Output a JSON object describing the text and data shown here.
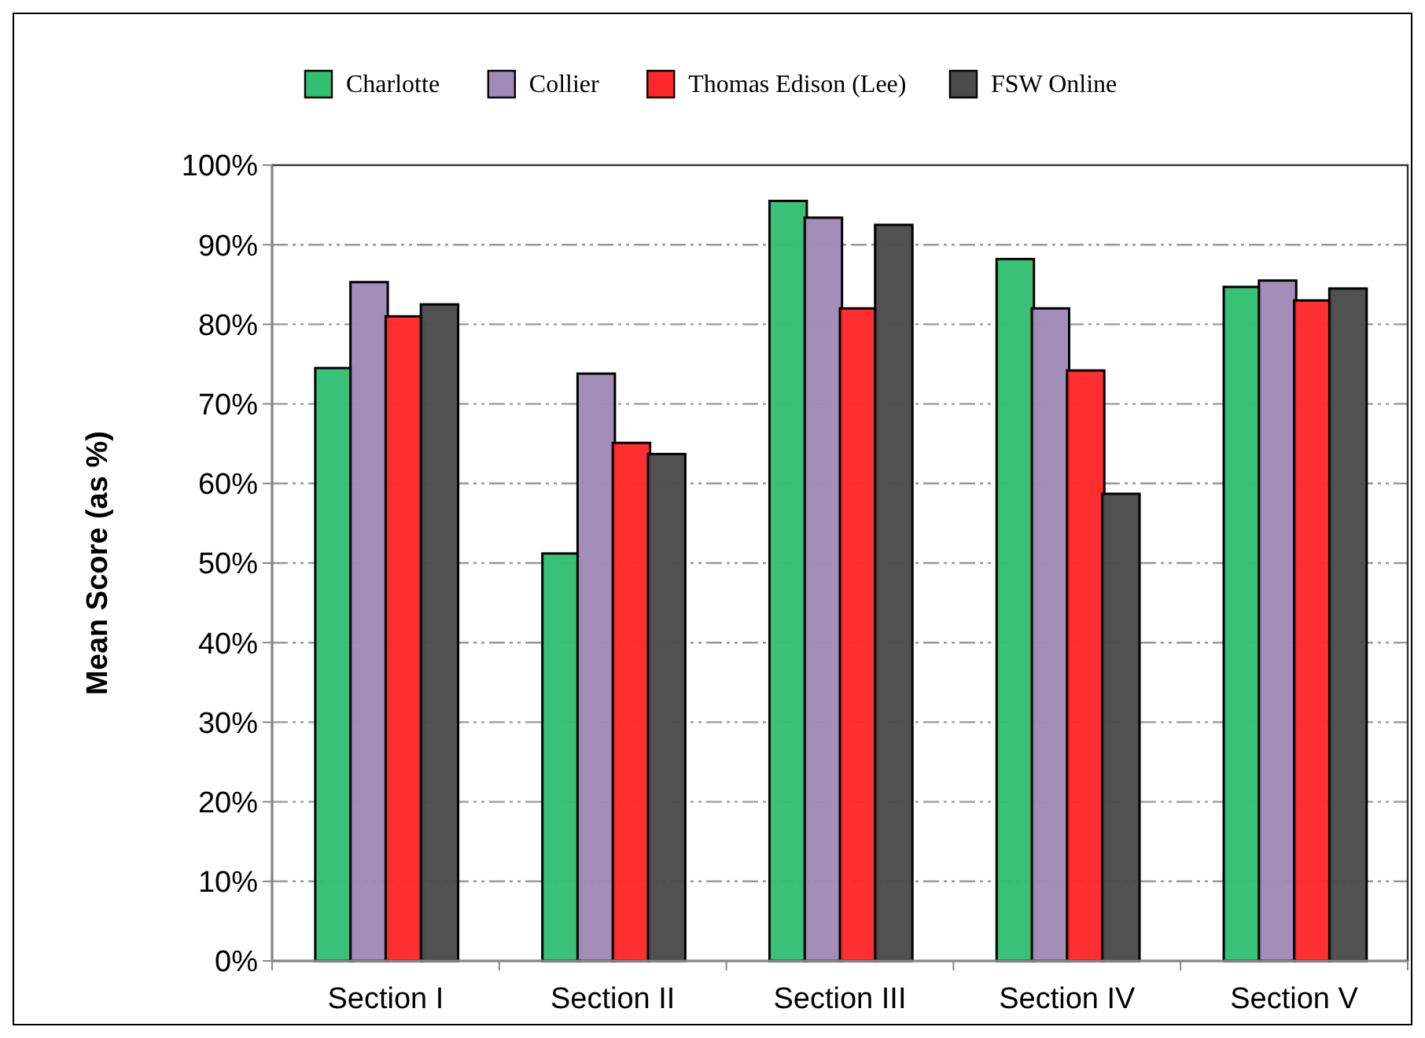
{
  "chart_data": {
    "type": "bar",
    "ylabel": "Mean Score (as %)",
    "categories": [
      "Section I",
      "Section II",
      "Section III",
      "Section IV",
      "Section V"
    ],
    "series": [
      {
        "name": "Charlotte",
        "color": "#33bf73",
        "values": [
          74.5,
          51.2,
          95.5,
          88.2,
          84.7
        ]
      },
      {
        "name": "Collier",
        "color": "#a08ab8",
        "values": [
          85.3,
          73.8,
          93.4,
          82,
          85.5
        ]
      },
      {
        "name": "Thomas Edison (Lee)",
        "color": "#ff2828",
        "values": [
          81,
          65.1,
          82,
          74.2,
          83
        ]
      },
      {
        "name": "FSW Online",
        "color": "#4b4b4b",
        "values": [
          82.5,
          63.7,
          92.5,
          58.7,
          84.5
        ]
      }
    ],
    "ylim": [
      0,
      100
    ],
    "yticks": [
      {
        "value": 0,
        "label": "0%"
      },
      {
        "value": 10,
        "label": "10%"
      },
      {
        "value": 20,
        "label": "20%"
      },
      {
        "value": 30,
        "label": "30%"
      },
      {
        "value": 40,
        "label": "40%"
      },
      {
        "value": 50,
        "label": "50%"
      },
      {
        "value": 60,
        "label": "60%"
      },
      {
        "value": 70,
        "label": "70%"
      },
      {
        "value": 80,
        "label": "80%"
      },
      {
        "value": 90,
        "label": "90%"
      },
      {
        "value": 100,
        "label": "100%"
      }
    ],
    "grid": "y",
    "legend": "top"
  }
}
